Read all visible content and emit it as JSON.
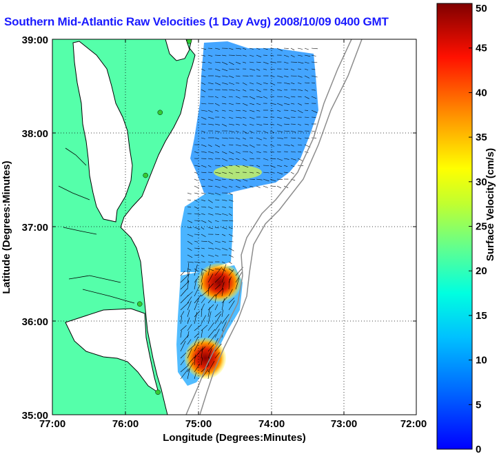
{
  "title": "Southern Mid-Atlantic Raw Velocities (1 Day Avg) 2008/10/09 0400 GMT",
  "axes": {
    "xlabel": "Longitude (Degrees:Minutes)",
    "ylabel": "Latitude (Degrees:Minutes)",
    "x_ticks": [
      "77:00",
      "76:00",
      "75:00",
      "74:00",
      "73:00",
      "72:00"
    ],
    "y_ticks": [
      "39:00",
      "38:00",
      "37:00",
      "36:00",
      "35:00"
    ],
    "xlim": [
      -77,
      -72
    ],
    "ylim": [
      35,
      39
    ]
  },
  "colorbar": {
    "label": "Surface Velocity (cm/s)",
    "ticks": [
      "0",
      "5",
      "10",
      "15",
      "20",
      "25",
      "30",
      "35",
      "40",
      "45",
      "50"
    ],
    "range": [
      0,
      50
    ]
  },
  "colors": {
    "land": "#55ffaa",
    "title": "#1a1aff",
    "coastline": "#000000",
    "bathymetry": "#8c8c8c",
    "station": "#33cc33"
  },
  "radar_stations": [
    {
      "lon": -75.12,
      "lat": 38.98
    },
    {
      "lon": -75.52,
      "lat": 38.22
    },
    {
      "lon": -75.72,
      "lat": 37.55
    },
    {
      "lon": -75.8,
      "lat": 36.18
    },
    {
      "lon": -75.55,
      "lat": 35.24
    }
  ]
}
